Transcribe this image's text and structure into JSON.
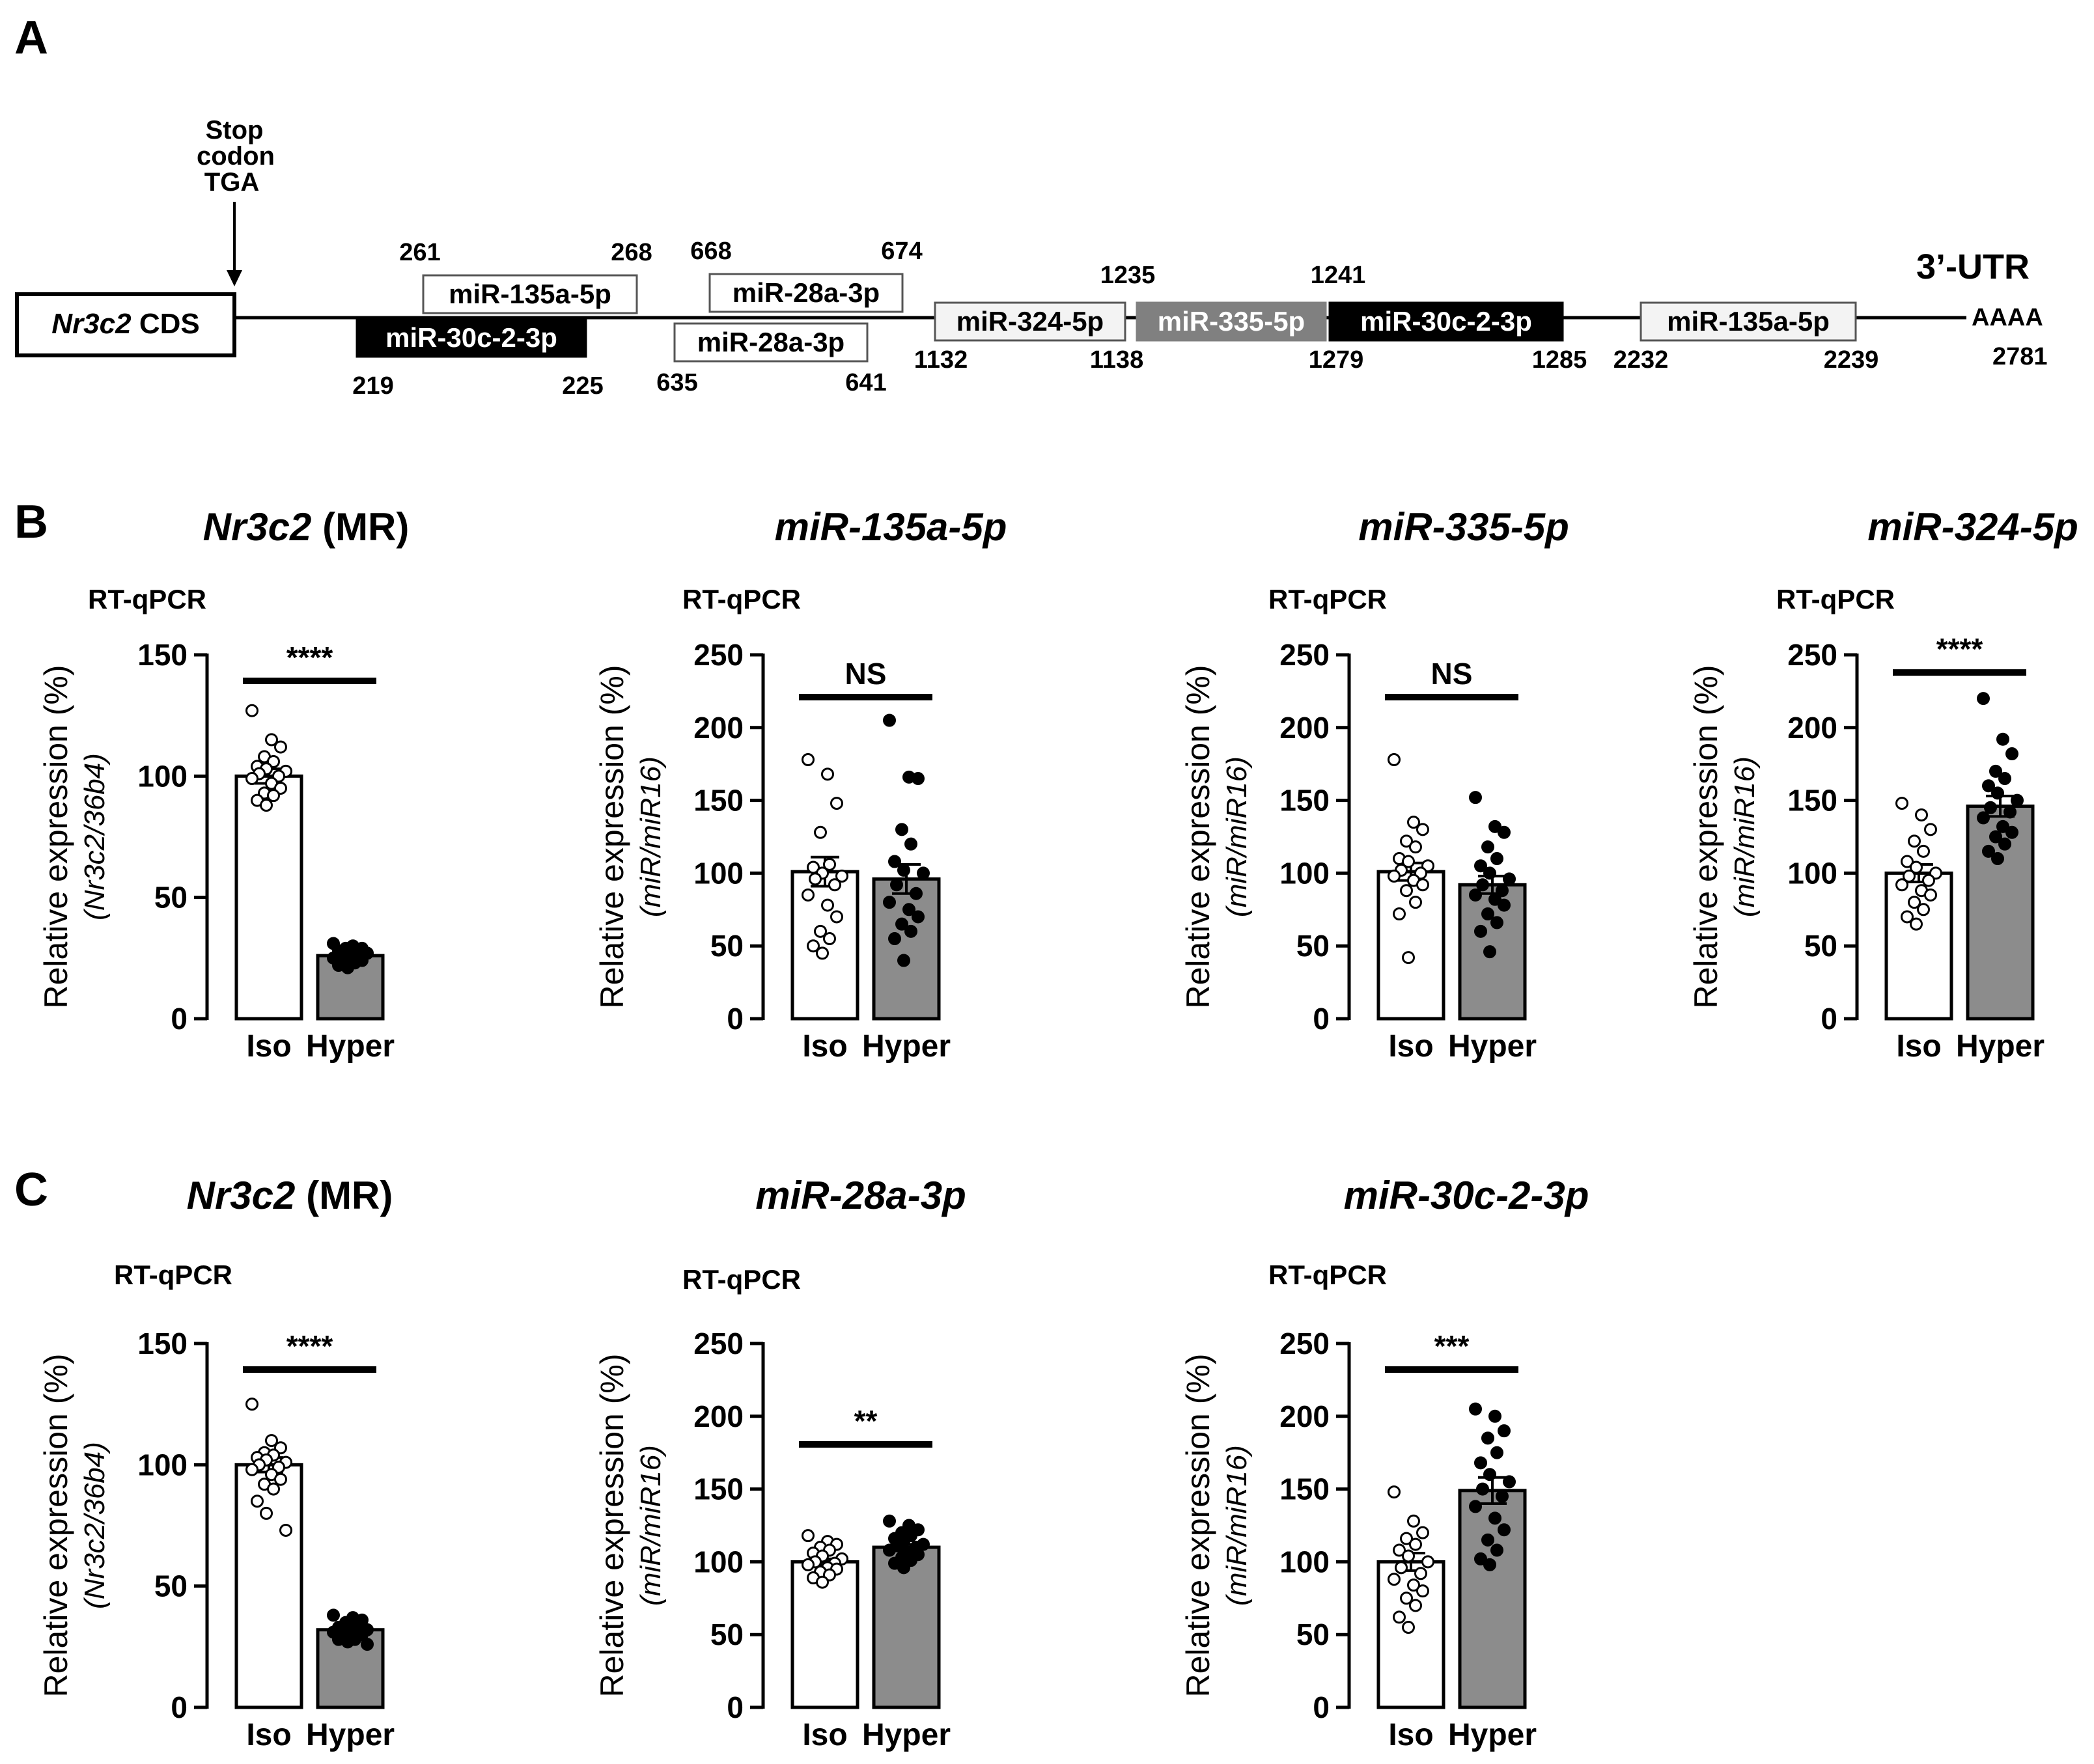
{
  "panel_a": {
    "label": "A",
    "cds_label_italic": "Nr3c2",
    "cds_label_rest": " CDS",
    "stop_lines": [
      "Stop",
      "codon",
      "TGA"
    ],
    "utr_label": "3’-UTR",
    "poly_a": "AAAA",
    "utr_end": "2781",
    "sites": [
      {
        "label": "miR-30c-2-3p",
        "style": "black",
        "start": "219",
        "end": "225"
      },
      {
        "label": "miR-135a-5p",
        "style": "white",
        "start": "261",
        "end": "268"
      },
      {
        "label": "miR-28a-3p",
        "style": "white",
        "start": "668",
        "end": "674"
      },
      {
        "label": "miR-28a-3p",
        "style": "white",
        "start": "635",
        "end": "641"
      },
      {
        "label": "miR-324-5p",
        "style": "light",
        "start": "1132",
        "end": "1138"
      },
      {
        "label": "miR-335-5p",
        "style": "gray",
        "start": "1235",
        "end": "1241"
      },
      {
        "label": "miR-30c-2-3p",
        "style": "black",
        "start": "1279",
        "end": "1285"
      },
      {
        "label": "miR-135a-5p",
        "style": "light",
        "start": "2232",
        "end": "2239"
      }
    ]
  },
  "panel_b_label": "B",
  "panel_c_label": "C",
  "chart_data": [
    {
      "panel": "B",
      "type": "bar",
      "title_italic": "Nr3c2",
      "title_rest": " (MR)",
      "method": "RT-qPCR",
      "ylabel": "Relative expression (%)",
      "ylabel_sub": "(Nr3c2/36b4)",
      "ylim": [
        0,
        150
      ],
      "yticks": [
        0,
        50,
        100,
        150
      ],
      "categories": [
        "Iso",
        "Hyper"
      ],
      "means": [
        100,
        26
      ],
      "sem": [
        3,
        1
      ],
      "points": [
        [
          127,
          115,
          112,
          108,
          106,
          104,
          103,
          102,
          101,
          100,
          99,
          97,
          95,
          93,
          92,
          90,
          88
        ],
        [
          31,
          30,
          29,
          29,
          28,
          28,
          27,
          27,
          26,
          26,
          25,
          25,
          24,
          24,
          23,
          22,
          21
        ]
      ],
      "significance": "****"
    },
    {
      "panel": "B",
      "type": "bar",
      "title_italic": "miR-135a-5p",
      "title_rest": "",
      "method": "RT-qPCR",
      "ylabel": "Relative expression (%)",
      "ylabel_sub": "(miR/miR16)",
      "ylim": [
        0,
        250
      ],
      "yticks": [
        0,
        50,
        100,
        150,
        200,
        250
      ],
      "categories": [
        "Iso",
        "Hyper"
      ],
      "means": [
        101,
        96
      ],
      "sem": [
        10,
        10
      ],
      "points": [
        [
          178,
          168,
          148,
          128,
          106,
          104,
          100,
          98,
          96,
          92,
          85,
          78,
          70,
          60,
          55,
          50,
          45
        ],
        [
          205,
          166,
          165,
          130,
          120,
          108,
          102,
          100,
          92,
          86,
          80,
          75,
          70,
          65,
          60,
          55,
          40
        ]
      ],
      "significance": "NS"
    },
    {
      "panel": "B",
      "type": "bar",
      "title_italic": "miR-335-5p",
      "title_rest": "",
      "method": "RT-qPCR",
      "ylabel": "Relative expression (%)",
      "ylabel_sub": "(miR/miR16)",
      "ylim": [
        0,
        250
      ],
      "yticks": [
        0,
        50,
        100,
        150,
        200,
        250
      ],
      "categories": [
        "Iso",
        "Hyper"
      ],
      "means": [
        101,
        92
      ],
      "sem": [
        6,
        6
      ],
      "points": [
        [
          178,
          135,
          130,
          122,
          118,
          110,
          108,
          105,
          102,
          100,
          98,
          95,
          92,
          88,
          80,
          72,
          42
        ],
        [
          152,
          132,
          128,
          118,
          110,
          105,
          100,
          96,
          92,
          88,
          85,
          82,
          78,
          72,
          66,
          60,
          46
        ]
      ],
      "significance": "NS"
    },
    {
      "panel": "B",
      "type": "bar",
      "title_italic": "miR-324-5p",
      "title_rest": "",
      "method": "RT-qPCR",
      "ylabel": "Relative expression (%)",
      "ylabel_sub": "(miR/miR16)",
      "ylim": [
        0,
        250
      ],
      "yticks": [
        0,
        50,
        100,
        150,
        200,
        250
      ],
      "categories": [
        "Iso",
        "Hyper"
      ],
      "means": [
        100,
        146
      ],
      "sem": [
        6,
        7
      ],
      "points": [
        [
          148,
          140,
          130,
          122,
          115,
          108,
          104,
          100,
          98,
          95,
          92,
          88,
          85,
          80,
          75,
          70,
          65
        ],
        [
          220,
          192,
          182,
          170,
          165,
          160,
          155,
          150,
          145,
          142,
          138,
          132,
          128,
          125,
          120,
          115,
          110
        ]
      ],
      "significance": "****"
    },
    {
      "panel": "C",
      "type": "bar",
      "title_italic": "Nr3c2",
      "title_rest": " (MR)",
      "method": "RT-qPCR",
      "ylabel": "Relative expression (%)",
      "ylabel_sub": "(Nr3c2/36b4)",
      "ylim": [
        0,
        150
      ],
      "yticks": [
        0,
        50,
        100,
        150
      ],
      "categories": [
        "Iso",
        "Hyper"
      ],
      "means": [
        100,
        32
      ],
      "sem": [
        3,
        1
      ],
      "points": [
        [
          125,
          110,
          107,
          105,
          104,
          103,
          102,
          101,
          100,
          99,
          98,
          96,
          94,
          92,
          90,
          85,
          80,
          73
        ],
        [
          38,
          37,
          36,
          35,
          34,
          33,
          33,
          32,
          32,
          31,
          31,
          30,
          30,
          29,
          28,
          28,
          27,
          26
        ]
      ],
      "significance": "****"
    },
    {
      "panel": "C",
      "type": "bar",
      "title_italic": "miR-28a-3p",
      "title_rest": "",
      "method": "RT-qPCR",
      "ylabel": "Relative expression (%)",
      "ylabel_sub": "(miR/miR16)",
      "ylim": [
        0,
        250
      ],
      "yticks": [
        0,
        50,
        100,
        150,
        200,
        250
      ],
      "categories": [
        "Iso",
        "Hyper"
      ],
      "means": [
        100,
        110
      ],
      "sem": [
        2,
        2
      ],
      "points": [
        [
          118,
          114,
          112,
          110,
          108,
          106,
          104,
          102,
          100,
          99,
          98,
          96,
          95,
          93,
          91,
          89,
          86
        ],
        [
          128,
          125,
          122,
          120,
          118,
          116,
          114,
          112,
          111,
          110,
          108,
          106,
          105,
          103,
          101,
          99,
          96
        ]
      ],
      "significance": "**"
    },
    {
      "panel": "C",
      "type": "bar",
      "title_italic": "miR-30c-2-3p",
      "title_rest": "",
      "method": "RT-qPCR",
      "ylabel": "Relative expression (%)",
      "ylabel_sub": "(miR/miR16)",
      "ylim": [
        0,
        250
      ],
      "yticks": [
        0,
        50,
        100,
        150,
        200,
        250
      ],
      "categories": [
        "Iso",
        "Hyper"
      ],
      "means": [
        100,
        149
      ],
      "sem": [
        6,
        9
      ],
      "points": [
        [
          148,
          128,
          120,
          116,
          112,
          108,
          104,
          100,
          96,
          92,
          88,
          84,
          80,
          75,
          70,
          62,
          55
        ],
        [
          205,
          200,
          190,
          185,
          175,
          168,
          160,
          155,
          150,
          145,
          138,
          130,
          122,
          115,
          108,
          102,
          98
        ]
      ],
      "significance": "***"
    }
  ]
}
